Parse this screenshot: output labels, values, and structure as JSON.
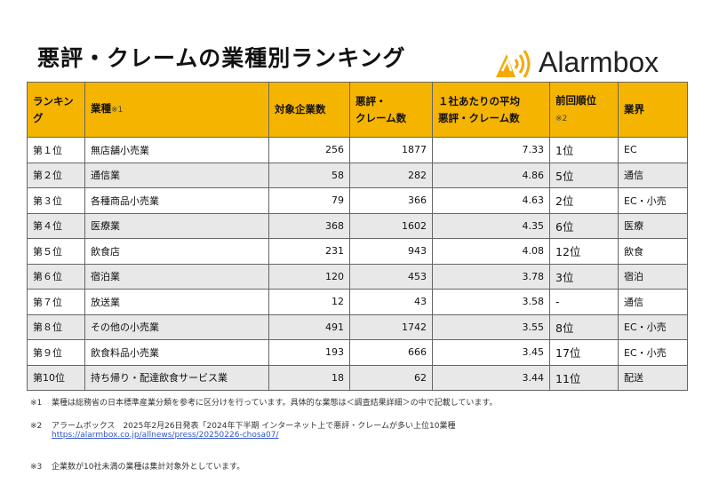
{
  "header": {
    "title": "悪評・クレームの業種別ランキング",
    "logo": "Alarmbox"
  },
  "table": {
    "columns": [
      {
        "lines": [
          "ランキング"
        ]
      },
      {
        "lines": [
          "業種"
        ],
        "note": "※1"
      },
      {
        "lines": [
          "対象企業数"
        ]
      },
      {
        "lines": [
          "悪評・",
          "クレーム数"
        ]
      },
      {
        "lines": [
          "１社あたりの平均",
          "悪評・クレーム数"
        ]
      },
      {
        "lines": [
          "前回順位"
        ],
        "note": "※2"
      },
      {
        "lines": [
          "業界"
        ]
      }
    ],
    "rows": [
      [
        "第１位",
        "無店舗小売業",
        256,
        1877,
        7.33,
        "1位",
        "EC"
      ],
      [
        "第２位",
        "通信業",
        58,
        282,
        4.86,
        "5位",
        "通信"
      ],
      [
        "第３位",
        "各種商品小売業",
        79,
        366,
        4.63,
        "2位",
        "EC・小売"
      ],
      [
        "第４位",
        "医療業",
        368,
        1602,
        4.35,
        "6位",
        "医療"
      ],
      [
        "第５位",
        "飲食店",
        231,
        943,
        4.08,
        "12位",
        "飲食"
      ],
      [
        "第６位",
        "宿泊業",
        120,
        453,
        3.78,
        "3位",
        "宿泊"
      ],
      [
        "第７位",
        "放送業",
        12,
        43,
        3.58,
        "-",
        "通信"
      ],
      [
        "第８位",
        "その他の小売業",
        491,
        1742,
        3.55,
        "8位",
        "EC・小売"
      ],
      [
        "第９位",
        "飲食料品小売業",
        193,
        666,
        3.45,
        "17位",
        "EC・小売"
      ],
      [
        "第10位",
        "持ち帰り・配達飲食サービス業",
        18,
        62,
        3.44,
        "11位",
        "配送"
      ]
    ]
  },
  "notes": [
    {
      "mark": "※1",
      "text": "業種は総務省の日本標準産業分類を参考に区分けを行っています。具体的な業態は＜調査結果詳細＞の中で記載しています。"
    },
    {
      "mark": "※2",
      "text": "アラームボックス　2025年2月26日発表「2024年下半期 インターネット上で悪評・クレームが多い上位10業種",
      "link": "https://alarmbox.co.jp/allnews/press/20250226-chosa07/"
    },
    {
      "mark": "※3",
      "text": "企業数が10社未満の業種は集計対象外としています。"
    }
  ]
}
